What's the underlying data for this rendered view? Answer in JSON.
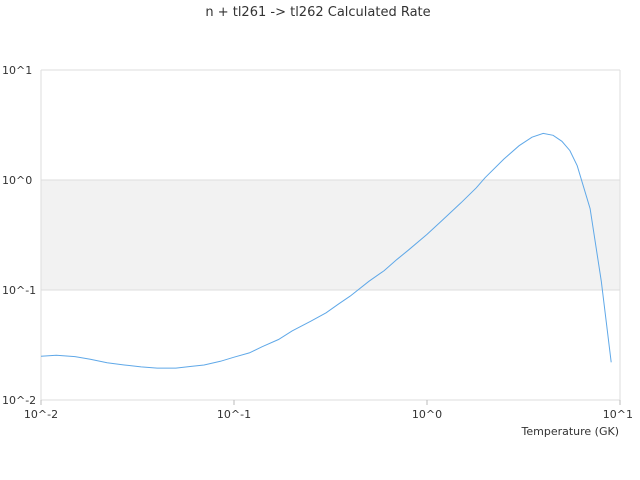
{
  "chart_data": {
    "type": "line",
    "title": "n + tl261 -> tl262 Calculated Rate",
    "xlabel": "Temperature (GK)",
    "ylabel": "",
    "x_scale": "log",
    "y_scale": "log",
    "xlim": [
      0.01,
      10
    ],
    "ylim": [
      0.01,
      10
    ],
    "x_ticks": [
      "10^-2",
      "10^-1",
      "10^0",
      "10^1"
    ],
    "y_ticks": [
      "10^-2",
      "10^-1",
      "10^0",
      "10^1"
    ],
    "grid": "horizontal",
    "legend": "none",
    "band": {
      "ymin": 0.1,
      "ymax": 1,
      "color": "#f2f2f2"
    },
    "colors": {
      "line": "#5fa8e8",
      "grid": "#dddddd",
      "band": "#f2f2f2"
    },
    "series": [
      {
        "x": [
          0.01,
          0.012,
          0.015,
          0.018,
          0.022,
          0.027,
          0.033,
          0.04,
          0.05,
          0.06,
          0.07,
          0.085,
          0.1,
          0.12,
          0.14,
          0.17,
          0.2,
          0.25,
          0.3,
          0.35,
          0.4,
          0.5,
          0.6,
          0.7,
          0.8,
          1.0,
          1.2,
          1.5,
          1.8,
          2.0,
          2.5,
          3.0,
          3.5,
          4.0,
          4.5,
          5.0,
          5.5,
          6.0,
          7.0,
          8.0,
          9.0
        ],
        "y": [
          0.025,
          0.0255,
          0.0248,
          0.0235,
          0.0218,
          0.0208,
          0.02,
          0.0195,
          0.0195,
          0.0202,
          0.0208,
          0.0225,
          0.0245,
          0.0268,
          0.0305,
          0.0355,
          0.0425,
          0.052,
          0.062,
          0.075,
          0.088,
          0.12,
          0.15,
          0.19,
          0.23,
          0.32,
          0.43,
          0.62,
          0.85,
          1.05,
          1.55,
          2.05,
          2.45,
          2.65,
          2.55,
          2.25,
          1.85,
          1.35,
          0.55,
          0.12,
          0.022
        ]
      }
    ]
  }
}
